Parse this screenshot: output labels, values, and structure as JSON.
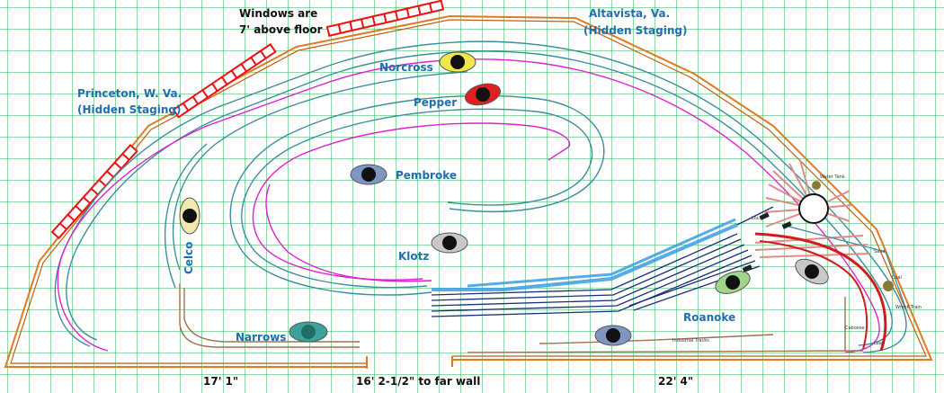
{
  "diagram": {
    "colors": {
      "grid": "#22b04a",
      "wall": "#e07a20",
      "window": "#ee1111",
      "track_teal": "#3d8f9a",
      "track_magenta": "#e020d0",
      "track_brown": "#a07050",
      "yard_blue": "#3a9ee0",
      "yard_navy": "#1b2f7a",
      "engine_terminal": "#e08a8a",
      "label": "#1f6fb0"
    },
    "labels": {
      "windows_line1": "Windows are",
      "windows_line2": "7' above floor",
      "altavista_line1": "Altavista, Va.",
      "altavista_line2": "(Hidden Staging)",
      "princeton_line1": "Princeton, W. Va.",
      "princeton_line2": "(Hidden Staging)",
      "norcross": "Norcross",
      "pepper": "Pepper",
      "pembroke": "Pembroke",
      "celco": "Celco",
      "klotz": "Klotz",
      "narrows": "Narrows",
      "roanoke": "Roanoke"
    },
    "small_labels": {
      "water_tank": "Water Tank",
      "sand": "Sand",
      "coal": "Coal",
      "wreck_train": "Wreck Train",
      "caboose": "Caboose",
      "lead": "Lead",
      "industrial_tracks": "Industrial Tracks",
      "loco": "Loco"
    },
    "dimensions": {
      "left": "17' 1\"",
      "middle": "16' 2-1/2\" to far wall",
      "right": "22' 4\""
    },
    "operators": [
      {
        "name": "norcross-operator",
        "color": "#f2e64a"
      },
      {
        "name": "pepper-operator",
        "color": "#e02020"
      },
      {
        "name": "pembroke-operator",
        "color": "#7d97c2"
      },
      {
        "name": "celco-operator",
        "color": "#f2e9b0"
      },
      {
        "name": "klotz-operator",
        "color": "#c8c8c8"
      },
      {
        "name": "narrows-operator",
        "color": "#3fa29a"
      },
      {
        "name": "roanoke-yard-operator",
        "color": "#9fd68a"
      },
      {
        "name": "roanoke-lower-operator",
        "color": "#7d97c2"
      },
      {
        "name": "roanoke-right-operator",
        "color": "#c8c8c8"
      }
    ]
  }
}
